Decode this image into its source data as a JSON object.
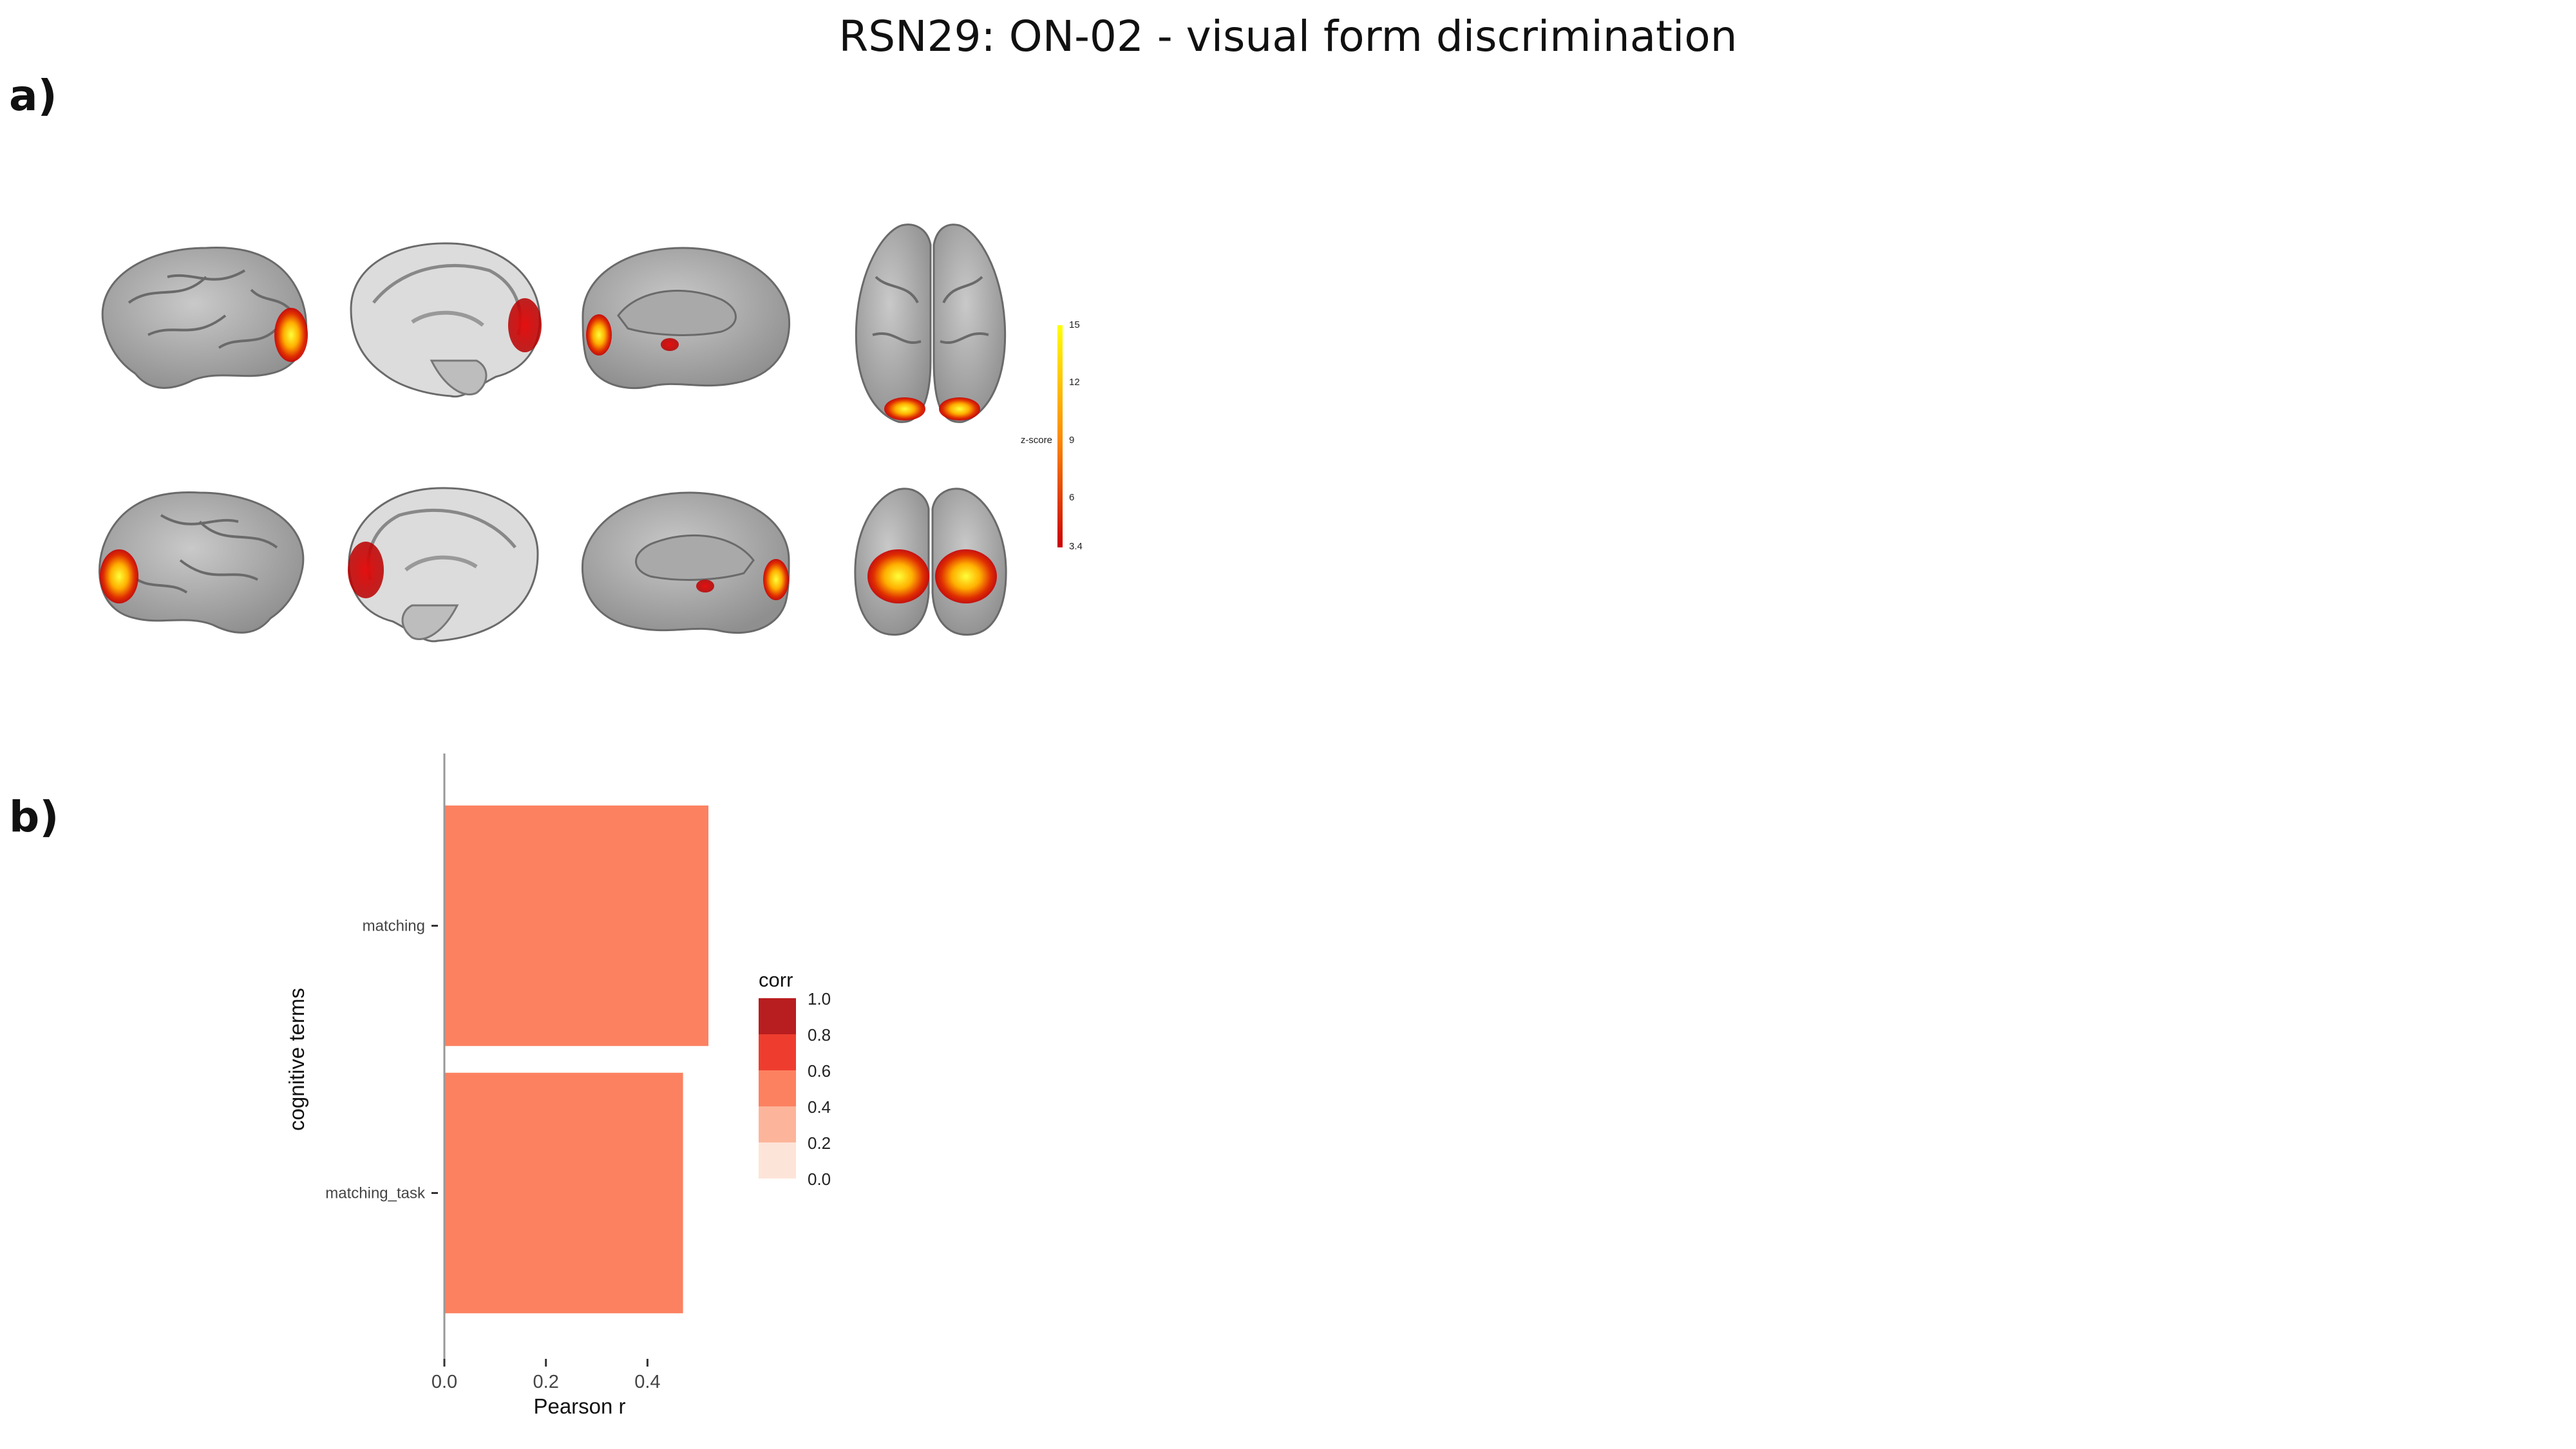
{
  "title": "RSN29: ON-02 - visual form discrimination",
  "panels": {
    "a_label": "a)",
    "b_label": "b)"
  },
  "brain_panel": {
    "colorbar": {
      "label": "z-score",
      "ticks": [
        "15",
        "12",
        "9",
        "6",
        "3.4"
      ],
      "colors": [
        "#ffff00",
        "#ff8c00",
        "#cc0000"
      ]
    }
  },
  "chart_data": {
    "type": "bar",
    "orientation": "horizontal",
    "categories": [
      "matching",
      "matching_task"
    ],
    "values": [
      0.52,
      0.47
    ],
    "xlabel": "Pearson r",
    "ylabel": "cognitive terms",
    "xlim": [
      0,
      0.52
    ],
    "x_ticks": [
      0.0,
      0.2,
      0.4
    ],
    "x_tick_labels": [
      "0.0",
      "0.2",
      "0.4"
    ],
    "bar_color": "#fc8161",
    "legend": {
      "title": "corr",
      "placement": "right",
      "entries": [
        {
          "label": "1.0",
          "color": "#b81d1f"
        },
        {
          "label": "0.8",
          "color": "#ee3d2e"
        },
        {
          "label": "0.6",
          "color": "#fc8161"
        },
        {
          "label": "0.4",
          "color": "#fcb59b"
        },
        {
          "label": "0.2",
          "color": "#fde4d8"
        },
        {
          "label": "0.0",
          "color": "#ffffff"
        }
      ]
    }
  }
}
